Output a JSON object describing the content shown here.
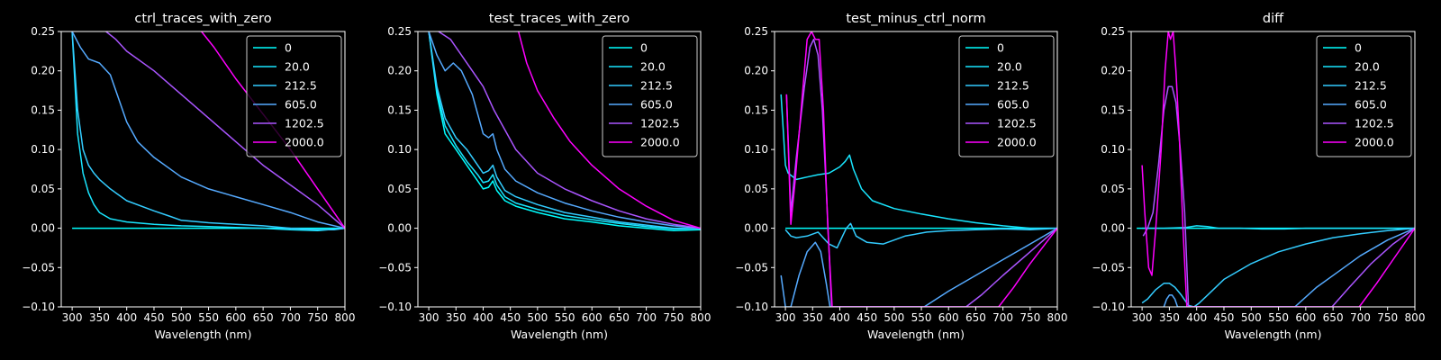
{
  "figure": {
    "background": "#000000",
    "foreground": "#ffffff"
  },
  "chart_data": [
    {
      "type": "line",
      "title": "ctrl_traces_with_zero",
      "xlabel": "Wavelength (nm)",
      "ylabel": "",
      "xlim": [
        280,
        800
      ],
      "ylim": [
        -0.1,
        0.25
      ],
      "xticks": [
        300,
        350,
        400,
        450,
        500,
        550,
        600,
        650,
        700,
        750,
        800
      ],
      "yticks": [
        -0.1,
        -0.05,
        0.0,
        0.05,
        0.1,
        0.15,
        0.2,
        0.25
      ],
      "xtick_labels": [
        "300",
        "350",
        "400",
        "450",
        "500",
        "550",
        "600",
        "650",
        "700",
        "750",
        "800"
      ],
      "ytick_labels": [
        "−0.10",
        "−0.05",
        "0.00",
        "0.05",
        "0.10",
        "0.15",
        "0.20",
        "0.25"
      ],
      "legend": {
        "placement": "top-right",
        "labels": [
          "0",
          "20.0",
          "212.5",
          "605.0",
          "1202.5",
          "2000.0"
        ]
      },
      "series": [
        {
          "name": "0",
          "color": "#00ffff",
          "x": [
            300,
            800
          ],
          "y": [
            0.0,
            0.0
          ]
        },
        {
          "name": "20.0",
          "color": "#19e6ff",
          "x": [
            300,
            310,
            320,
            330,
            340,
            350,
            370,
            400,
            450,
            500,
            550,
            600,
            650,
            700,
            750,
            800
          ],
          "y": [
            0.25,
            0.12,
            0.07,
            0.045,
            0.03,
            0.02,
            0.012,
            0.008,
            0.005,
            0.003,
            0.002,
            0.001,
            0.0,
            -0.002,
            -0.003,
            0.0
          ]
        },
        {
          "name": "212.5",
          "color": "#33ccff",
          "x": [
            300,
            310,
            320,
            330,
            340,
            350,
            370,
            400,
            450,
            480,
            500,
            550,
            600,
            650,
            700,
            750,
            780,
            800
          ],
          "y": [
            0.25,
            0.15,
            0.1,
            0.08,
            0.07,
            0.062,
            0.05,
            0.035,
            0.022,
            0.015,
            0.01,
            0.007,
            0.005,
            0.003,
            0.0,
            -0.002,
            -0.002,
            0.0
          ]
        },
        {
          "name": "605.0",
          "color": "#55aaff",
          "x": [
            300,
            315,
            330,
            350,
            370,
            385,
            400,
            420,
            450,
            500,
            550,
            600,
            650,
            700,
            750,
            800
          ],
          "y": [
            0.25,
            0.23,
            0.215,
            0.21,
            0.195,
            0.165,
            0.135,
            0.11,
            0.09,
            0.065,
            0.05,
            0.04,
            0.03,
            0.02,
            0.008,
            0.0
          ]
        },
        {
          "name": "1202.5",
          "color": "#aa55ff",
          "x": [
            362,
            380,
            400,
            450,
            500,
            550,
            600,
            650,
            700,
            750,
            780,
            800
          ],
          "y": [
            0.25,
            0.24,
            0.225,
            0.2,
            0.17,
            0.14,
            0.11,
            0.08,
            0.055,
            0.03,
            0.012,
            0.0
          ]
        },
        {
          "name": "2000.0",
          "color": "#ff00ff",
          "x": [
            537,
            560,
            600,
            650,
            700,
            750,
            780,
            800
          ],
          "y": [
            0.25,
            0.23,
            0.19,
            0.145,
            0.1,
            0.05,
            0.02,
            0.0
          ]
        }
      ]
    },
    {
      "type": "line",
      "title": "test_traces_with_zero",
      "xlabel": "Wavelength (nm)",
      "ylabel": "",
      "xlim": [
        280,
        800
      ],
      "ylim": [
        -0.1,
        0.25
      ],
      "xticks": [
        300,
        350,
        400,
        450,
        500,
        550,
        600,
        650,
        700,
        750,
        800
      ],
      "yticks": [
        -0.1,
        -0.05,
        0.0,
        0.05,
        0.1,
        0.15,
        0.2,
        0.25
      ],
      "xtick_labels": [
        "300",
        "350",
        "400",
        "450",
        "500",
        "550",
        "600",
        "650",
        "700",
        "750",
        "800"
      ],
      "ytick_labels": [
        "−0.10",
        "−0.05",
        "0.00",
        "0.05",
        "0.10",
        "0.15",
        "0.20",
        "0.25"
      ],
      "legend": {
        "placement": "top-right",
        "labels": [
          "0",
          "20.0",
          "212.5",
          "605.0",
          "1202.5",
          "2000.0"
        ]
      },
      "series": [
        {
          "name": "0",
          "color": "#00ffff",
          "x": [
            300,
            315,
            330,
            350,
            370,
            390,
            400,
            410,
            418,
            425,
            440,
            460,
            500,
            550,
            600,
            650,
            700,
            750,
            800
          ],
          "y": [
            0.25,
            0.17,
            0.12,
            0.1,
            0.08,
            0.06,
            0.05,
            0.052,
            0.06,
            0.048,
            0.035,
            0.028,
            0.02,
            0.012,
            0.008,
            0.003,
            0.0,
            -0.003,
            -0.002
          ]
        },
        {
          "name": "20.0",
          "color": "#19e6ff",
          "x": [
            300,
            315,
            330,
            350,
            370,
            390,
            400,
            410,
            418,
            425,
            440,
            460,
            500,
            550,
            600,
            650,
            700,
            750,
            800
          ],
          "y": [
            0.25,
            0.175,
            0.13,
            0.105,
            0.085,
            0.068,
            0.058,
            0.06,
            0.068,
            0.055,
            0.04,
            0.032,
            0.024,
            0.016,
            0.011,
            0.006,
            0.002,
            -0.001,
            0.0
          ]
        },
        {
          "name": "212.5",
          "color": "#33ccff",
          "x": [
            300,
            315,
            330,
            350,
            370,
            390,
            400,
            410,
            418,
            425,
            440,
            460,
            500,
            550,
            600,
            650,
            700,
            750,
            800
          ],
          "y": [
            0.25,
            0.18,
            0.14,
            0.115,
            0.1,
            0.08,
            0.07,
            0.073,
            0.08,
            0.065,
            0.048,
            0.04,
            0.03,
            0.02,
            0.014,
            0.008,
            0.004,
            0.0,
            0.0
          ]
        },
        {
          "name": "605.0",
          "color": "#55aaff",
          "x": [
            300,
            315,
            330,
            345,
            360,
            380,
            400,
            410,
            418,
            425,
            440,
            460,
            500,
            550,
            600,
            650,
            700,
            750,
            800
          ],
          "y": [
            0.25,
            0.22,
            0.2,
            0.21,
            0.2,
            0.17,
            0.12,
            0.115,
            0.12,
            0.1,
            0.075,
            0.06,
            0.045,
            0.032,
            0.022,
            0.014,
            0.008,
            0.003,
            0.0
          ]
        },
        {
          "name": "1202.5",
          "color": "#aa55ff",
          "x": [
            318,
            340,
            360,
            380,
            400,
            420,
            440,
            460,
            500,
            550,
            600,
            650,
            700,
            750,
            800
          ],
          "y": [
            0.25,
            0.24,
            0.22,
            0.2,
            0.18,
            0.15,
            0.125,
            0.1,
            0.07,
            0.05,
            0.035,
            0.022,
            0.012,
            0.005,
            0.0
          ]
        },
        {
          "name": "2000.0",
          "color": "#ff00ff",
          "x": [
            465,
            480,
            500,
            530,
            560,
            600,
            650,
            700,
            750,
            800
          ],
          "y": [
            0.25,
            0.21,
            0.175,
            0.14,
            0.11,
            0.08,
            0.05,
            0.028,
            0.01,
            0.0
          ]
        }
      ]
    },
    {
      "type": "line",
      "title": "test_minus_ctrl_norm",
      "xlabel": "Wavelength (nm)",
      "ylabel": "",
      "xlim": [
        280,
        800
      ],
      "ylim": [
        -0.1,
        0.25
      ],
      "xticks": [
        300,
        350,
        400,
        450,
        500,
        550,
        600,
        650,
        700,
        750,
        800
      ],
      "yticks": [
        -0.1,
        -0.05,
        0.0,
        0.05,
        0.1,
        0.15,
        0.2,
        0.25
      ],
      "xtick_labels": [
        "300",
        "350",
        "400",
        "450",
        "500",
        "550",
        "600",
        "650",
        "700",
        "750",
        "800"
      ],
      "ytick_labels": [
        "−0.10",
        "−0.05",
        "0.00",
        "0.05",
        "0.10",
        "0.15",
        "0.20",
        "0.25"
      ],
      "legend": {
        "placement": "top-right",
        "labels": [
          "0",
          "20.0",
          "212.5",
          "605.0",
          "1202.5",
          "2000.0"
        ]
      },
      "series": [
        {
          "name": "0",
          "color": "#00ffff",
          "x": [
            300,
            800
          ],
          "y": [
            0.0,
            0.0
          ]
        },
        {
          "name": "20.0",
          "color": "#19e6ff",
          "x": [
            292,
            300,
            305,
            320,
            340,
            360,
            380,
            400,
            410,
            418,
            425,
            440,
            460,
            500,
            550,
            600,
            650,
            700,
            750,
            800
          ],
          "y": [
            0.17,
            0.08,
            0.07,
            0.062,
            0.065,
            0.068,
            0.07,
            0.078,
            0.085,
            0.093,
            0.075,
            0.05,
            0.035,
            0.025,
            0.018,
            0.012,
            0.007,
            0.003,
            0.0,
            0.0
          ]
        },
        {
          "name": "212.5",
          "color": "#33ccff",
          "x": [
            300,
            310,
            320,
            340,
            360,
            380,
            395,
            405,
            412,
            420,
            430,
            450,
            480,
            520,
            560,
            600,
            650,
            700,
            750,
            800
          ],
          "y": [
            -0.002,
            -0.01,
            -0.012,
            -0.01,
            -0.005,
            -0.02,
            -0.025,
            -0.01,
            0.0,
            0.006,
            -0.01,
            -0.018,
            -0.02,
            -0.01,
            -0.005,
            -0.003,
            -0.002,
            -0.001,
            -0.002,
            0.0
          ]
        },
        {
          "name": "605.0",
          "color": "#55aaff",
          "x": [
            292,
            300,
            310,
            325,
            340,
            355,
            365,
            375,
            382,
            555,
            600,
            650,
            700,
            750,
            800
          ],
          "y": [
            -0.06,
            -0.1,
            -0.1,
            -0.06,
            -0.03,
            -0.018,
            -0.03,
            -0.07,
            -0.1,
            -0.1,
            -0.08,
            -0.06,
            -0.04,
            -0.02,
            0.0
          ]
        },
        {
          "name": "1202.5",
          "color": "#aa55ff",
          "x": [
            302,
            310,
            320,
            335,
            345,
            352,
            360,
            368,
            375,
            385,
            632,
            660,
            700,
            750,
            800
          ],
          "y": [
            0.17,
            0.02,
            0.09,
            0.18,
            0.23,
            0.24,
            0.22,
            0.15,
            0.05,
            -0.1,
            -0.1,
            -0.085,
            -0.06,
            -0.03,
            0.0
          ]
        },
        {
          "name": "2000.0",
          "color": "#ff00ff",
          "x": [
            302,
            310,
            318,
            330,
            340,
            348,
            355,
            362,
            370,
            378,
            386,
            692,
            720,
            750,
            780,
            800
          ],
          "y": [
            0.17,
            0.005,
            0.06,
            0.16,
            0.24,
            0.25,
            0.24,
            0.24,
            0.15,
            0.0,
            -0.1,
            -0.1,
            -0.075,
            -0.045,
            -0.018,
            0.0
          ]
        }
      ]
    },
    {
      "type": "line",
      "title": "diff",
      "xlabel": "Wavelength (nm)",
      "ylabel": "",
      "xlim": [
        280,
        800
      ],
      "ylim": [
        -0.1,
        0.25
      ],
      "xticks": [
        300,
        350,
        400,
        450,
        500,
        550,
        600,
        650,
        700,
        750,
        800
      ],
      "yticks": [
        -0.1,
        -0.05,
        0.0,
        0.05,
        0.1,
        0.15,
        0.2,
        0.25
      ],
      "xtick_labels": [
        "300",
        "350",
        "400",
        "450",
        "500",
        "550",
        "600",
        "650",
        "700",
        "750",
        "800"
      ],
      "ytick_labels": [
        "−0.10",
        "−0.05",
        "0.00",
        "0.05",
        "0.10",
        "0.15",
        "0.20",
        "0.25"
      ],
      "legend": {
        "placement": "top-right",
        "labels": [
          "0",
          "20.0",
          "212.5",
          "605.0",
          "1202.5",
          "2000.0"
        ]
      },
      "series": [
        {
          "name": "0",
          "color": "#00ffff",
          "x": [
            290,
            800
          ],
          "y": [
            0.0,
            0.0
          ]
        },
        {
          "name": "20.0",
          "color": "#19e6ff",
          "x": [
            300,
            340,
            380,
            400,
            420,
            440,
            480,
            520,
            560,
            600,
            650,
            700,
            750,
            800
          ],
          "y": [
            0.0,
            0.0,
            0.001,
            0.003,
            0.002,
            0.0,
            0.0,
            -0.001,
            -0.001,
            0.0,
            0.0,
            0.0,
            0.0,
            0.0
          ]
        },
        {
          "name": "212.5",
          "color": "#33ccff",
          "x": [
            300,
            310,
            325,
            340,
            350,
            360,
            372,
            385,
            395,
            405,
            420,
            450,
            500,
            550,
            600,
            650,
            700,
            750,
            800
          ],
          "y": [
            -0.095,
            -0.09,
            -0.078,
            -0.07,
            -0.07,
            -0.075,
            -0.085,
            -0.098,
            -0.1,
            -0.095,
            -0.085,
            -0.065,
            -0.045,
            -0.03,
            -0.02,
            -0.012,
            -0.007,
            -0.003,
            0.0
          ]
        },
        {
          "name": "605.0",
          "color": "#55aaff",
          "x": [
            340,
            345,
            350,
            355,
            360,
            365,
            370,
            580,
            620,
            660,
            700,
            750,
            800
          ],
          "y": [
            -0.1,
            -0.09,
            -0.085,
            -0.085,
            -0.09,
            -0.1,
            -0.1,
            -0.1,
            -0.075,
            -0.055,
            -0.035,
            -0.015,
            0.0
          ]
        },
        {
          "name": "1202.5",
          "color": "#aa55ff",
          "x": [
            302,
            310,
            320,
            330,
            340,
            348,
            355,
            362,
            370,
            378,
            385,
            648,
            680,
            720,
            760,
            800
          ],
          "y": [
            -0.01,
            0.0,
            0.02,
            0.08,
            0.15,
            0.18,
            0.18,
            0.16,
            0.1,
            0.02,
            -0.1,
            -0.1,
            -0.075,
            -0.045,
            -0.02,
            0.0
          ]
        },
        {
          "name": "2000.0",
          "color": "#ff00ff",
          "x": [
            300,
            305,
            312,
            318,
            325,
            335,
            342,
            348,
            352,
            357,
            362,
            368,
            375,
            382,
            698,
            730,
            760,
            800
          ],
          "y": [
            0.08,
            0.02,
            -0.05,
            -0.06,
            0.0,
            0.1,
            0.2,
            0.25,
            0.24,
            0.25,
            0.2,
            0.12,
            0.0,
            -0.1,
            -0.1,
            -0.07,
            -0.04,
            0.0
          ]
        }
      ]
    }
  ]
}
